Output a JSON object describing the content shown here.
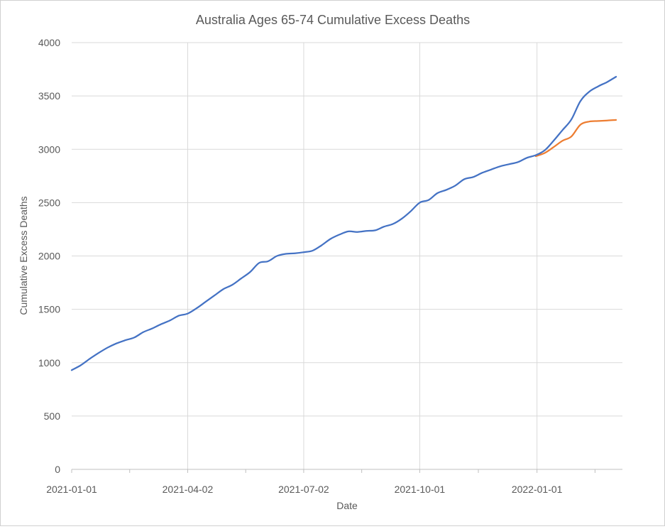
{
  "chart_data": {
    "type": "line",
    "title": "Australia Ages 65-74 Cumulative Excess Deaths",
    "xlabel": "Date",
    "ylabel": "Cumulative Excess Deaths",
    "ylim": [
      0,
      4000
    ],
    "y_ticks": [
      "0",
      "500",
      "1000",
      "1500",
      "2000",
      "2500",
      "3000",
      "3500",
      "4000"
    ],
    "x_ticks": [
      "2021-01-01",
      "2021-04-02",
      "2021-07-02",
      "2021-10-01",
      "2022-01-01"
    ],
    "grid": true,
    "legend": "none",
    "colors": {
      "series_1": "#4472c4",
      "series_2": "#ed7d31",
      "grid": "#d9d9d9",
      "axis": "#bfbfbf",
      "text": "#595959"
    },
    "series": [
      {
        "x": [
          "2021-01-01",
          "2021-01-08",
          "2021-01-15",
          "2021-01-22",
          "2021-01-29",
          "2021-02-05",
          "2021-02-12",
          "2021-02-19",
          "2021-02-26",
          "2021-03-05",
          "2021-03-12",
          "2021-03-19",
          "2021-03-26",
          "2021-04-02",
          "2021-04-09",
          "2021-04-16",
          "2021-04-23",
          "2021-04-30",
          "2021-05-07",
          "2021-05-14",
          "2021-05-21",
          "2021-05-28",
          "2021-06-04",
          "2021-06-11",
          "2021-06-18",
          "2021-06-25",
          "2021-07-02",
          "2021-07-09",
          "2021-07-16",
          "2021-07-23",
          "2021-07-30",
          "2021-08-06",
          "2021-08-13",
          "2021-08-20",
          "2021-08-27",
          "2021-09-03",
          "2021-09-10",
          "2021-09-17",
          "2021-09-24",
          "2021-10-01",
          "2021-10-08",
          "2021-10-15",
          "2021-10-22",
          "2021-10-29",
          "2021-11-05",
          "2021-11-12",
          "2021-11-19",
          "2021-11-26",
          "2021-12-03",
          "2021-12-10",
          "2021-12-17",
          "2021-12-24",
          "2021-12-31",
          "2022-01-07",
          "2022-01-14",
          "2022-01-21",
          "2022-01-28",
          "2022-02-04",
          "2022-02-11",
          "2022-02-18",
          "2022-02-25",
          "2022-03-04"
        ],
        "values": [
          930,
          975,
          1035,
          1090,
          1140,
          1180,
          1210,
          1235,
          1285,
          1320,
          1360,
          1395,
          1440,
          1460,
          1510,
          1570,
          1630,
          1690,
          1730,
          1790,
          1850,
          1935,
          1950,
          2000,
          2020,
          2025,
          2035,
          2050,
          2100,
          2160,
          2200,
          2230,
          2225,
          2235,
          2240,
          2275,
          2300,
          2350,
          2420,
          2500,
          2525,
          2590,
          2620,
          2660,
          2720,
          2740,
          2780,
          2810,
          2840,
          2860,
          2880,
          2920,
          2945,
          2990,
          3080,
          3180,
          3280,
          3450,
          3540,
          3590,
          3630,
          3680
        ]
      },
      {
        "x": [
          "2021-12-31",
          "2022-01-07",
          "2022-01-14",
          "2022-01-21",
          "2022-01-28",
          "2022-02-04",
          "2022-02-11",
          "2022-02-18",
          "2022-02-25",
          "2022-03-04"
        ],
        "values": [
          2935,
          2965,
          3020,
          3080,
          3120,
          3230,
          3260,
          3265,
          3270,
          3275
        ]
      }
    ]
  }
}
